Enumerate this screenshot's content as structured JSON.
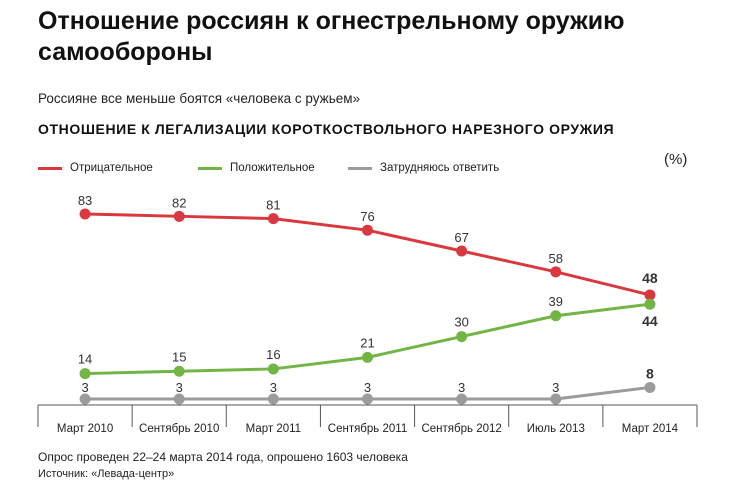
{
  "title": "Отношение россиян к огнестрельному оружию самообороны",
  "subtitle": "Россияне все меньше боятся «человека с ружьем»",
  "chart_title": "ОТНОШЕНИЕ К ЛЕГАЛИЗАЦИИ КОРОТКОСТВОЛЬНОГО НАРЕЗНОГО ОРУЖИЯ",
  "unit_label": "(%)",
  "footnote": "Опрос проведен 22–24 марта 2014 года, опрошено 1603 человека",
  "source": "Источник: «Левада-центр»",
  "chart_data": {
    "type": "line",
    "categories": [
      "Март 2010",
      "Сентябрь 2010",
      "Март 2011",
      "Сентябрь 2011",
      "Сентябрь 2012",
      "Июль 2013",
      "Март 2014"
    ],
    "series": [
      {
        "name": "Отрицательное",
        "color": "#d9393e",
        "values": [
          83,
          82,
          81,
          76,
          67,
          58,
          48
        ]
      },
      {
        "name": "Положительное",
        "color": "#72b544",
        "values": [
          14,
          15,
          16,
          21,
          30,
          39,
          44
        ]
      },
      {
        "name": "Затрудняюсь ответить",
        "color": "#9b9b9b",
        "values": [
          3,
          3,
          3,
          3,
          3,
          3,
          8
        ]
      }
    ],
    "ylim": [
      3,
      83
    ],
    "legend_position": "top-left",
    "grid": false,
    "last_point_labels_bold": true
  }
}
